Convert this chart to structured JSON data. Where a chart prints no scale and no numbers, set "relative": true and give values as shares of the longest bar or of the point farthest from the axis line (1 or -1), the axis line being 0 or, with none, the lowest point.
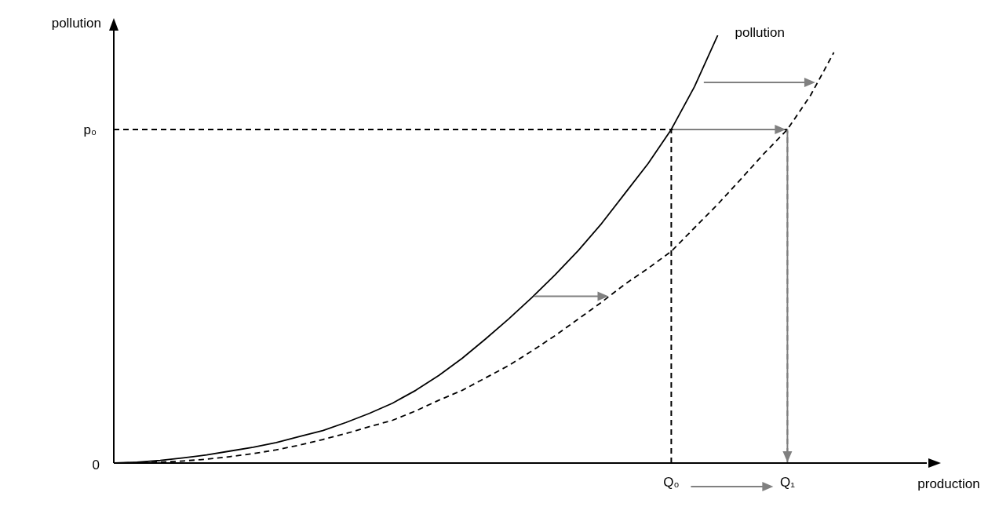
{
  "chart_data": {
    "type": "line",
    "relative": true,
    "xlabel": "production",
    "ylabel": "pollution",
    "marker": "none",
    "categories": [
      null,
      null,
      null,
      null,
      null,
      null,
      null,
      null,
      null,
      null,
      null,
      null,
      null,
      null,
      null,
      null,
      null,
      null,
      null,
      null,
      null,
      null,
      null,
      null,
      "Q₀",
      null,
      null,
      null,
      null,
      "Q₁",
      null,
      null,
      null,
      null,
      null,
      null
    ],
    "series": [
      {
        "name": "pollution",
        "color": "#000000",
        "line_style": "solid",
        "values": [
          0,
          0.002,
          0.006,
          0.012,
          0.019,
          0.028,
          0.037,
          0.048,
          0.062,
          0.076,
          0.095,
          0.116,
          0.14,
          0.17,
          0.205,
          0.245,
          0.29,
          0.337,
          0.387,
          0.44,
          0.497,
          0.56,
          0.63,
          0.7,
          0.78,
          0.88,
          1,
          null,
          null,
          null,
          null,
          null,
          null,
          null,
          null,
          null
        ]
      },
      {
        "color": "#000000",
        "line_style": "dashed",
        "values": [
          0,
          0.001,
          0.002,
          0.005,
          0.009,
          0.015,
          0.022,
          0.031,
          0.042,
          0.055,
          0.069,
          0.085,
          0.1,
          0.122,
          0.147,
          0.17,
          0.199,
          0.228,
          0.262,
          0.298,
          0.337,
          0.376,
          0.418,
          0.455,
          0.495,
          0.55,
          0.605,
          0.664,
          0.724,
          0.78,
          0.86,
          0.96,
          null,
          null,
          null,
          null
        ]
      }
    ],
    "ref_lines": [
      {
        "axis": "y",
        "value": 0.78,
        "label": "p₀",
        "color": "#000000",
        "line_style": "dashed"
      },
      {
        "axis": "x",
        "value": "Q₀",
        "color": "#000000",
        "line_style": "dashed"
      },
      {
        "axis": "x",
        "value": "Q₁",
        "color": "#808080",
        "line_style": "dashed"
      }
    ],
    "annotations": [
      "0"
    ]
  }
}
